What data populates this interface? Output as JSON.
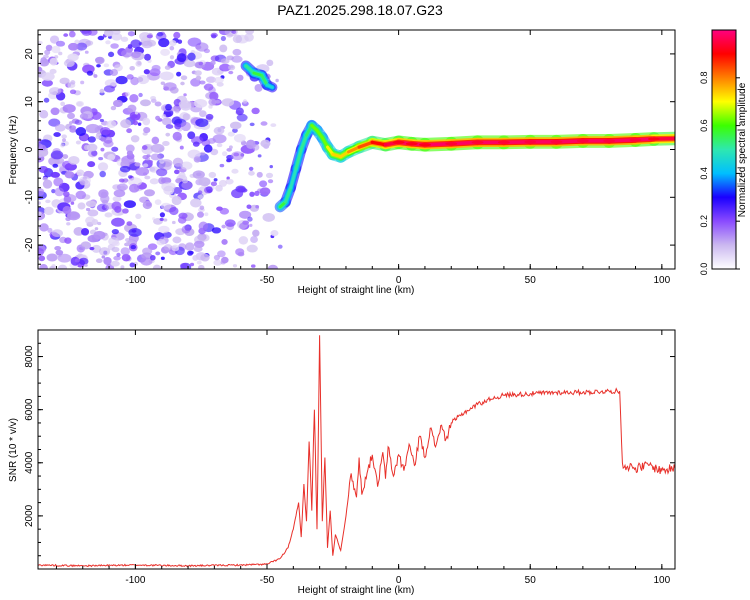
{
  "figure_title": "PAZ1.2025.298.18.07.G23",
  "chart_data": [
    {
      "type": "heatmap",
      "panel": "spectrogram",
      "xlabel": "Height of straight line (km)",
      "ylabel": "Frequency (Hz)",
      "xlim": [
        -137,
        105
      ],
      "ylim": [
        -25,
        25
      ],
      "xticks": [
        -100,
        -50,
        0,
        50,
        100
      ],
      "yticks": [
        -20,
        -10,
        0,
        10,
        20
      ],
      "colorbar": {
        "label": "Normalized spectral amplitude",
        "range": [
          0,
          1
        ],
        "ticks": [
          0.0,
          0.2,
          0.4,
          0.6,
          0.8
        ],
        "tick_labels": [
          "0.0",
          "0.2",
          "0.4",
          "0.6",
          "0.8"
        ],
        "stops": [
          "#ffffff",
          "#cbb8f0",
          "#8a4bff",
          "#1a00ff",
          "#00bfff",
          "#2ee8b0",
          "#3cff00",
          "#ffff00",
          "#ff8000",
          "#ff0000",
          "#ff0080"
        ]
      },
      "noise_region_x": [
        -137,
        -52
      ],
      "ridge": [
        {
          "x": -58,
          "f": 17.5,
          "a": 0.45
        },
        {
          "x": -55,
          "f": 16.0,
          "a": 0.5
        },
        {
          "x": -52,
          "f": 15.5,
          "a": 0.55
        },
        {
          "x": -50,
          "f": 13.5,
          "a": 0.45
        },
        {
          "x": -48,
          "f": 13.0,
          "a": 0.4
        },
        {
          "x": -45,
          "f": -12.0,
          "a": 0.55
        },
        {
          "x": -43,
          "f": -11.0,
          "a": 0.5
        },
        {
          "x": -41,
          "f": -8.0,
          "a": 0.45
        },
        {
          "x": -39,
          "f": -4.0,
          "a": 0.45
        },
        {
          "x": -37,
          "f": 0.0,
          "a": 0.5
        },
        {
          "x": -35,
          "f": 3.0,
          "a": 0.45
        },
        {
          "x": -33,
          "f": 5.0,
          "a": 0.55
        },
        {
          "x": -31,
          "f": 4.0,
          "a": 0.6
        },
        {
          "x": -29,
          "f": 2.5,
          "a": 0.55
        },
        {
          "x": -27,
          "f": 0.5,
          "a": 0.6
        },
        {
          "x": -25,
          "f": -1.0,
          "a": 0.7
        },
        {
          "x": -22,
          "f": -1.5,
          "a": 0.65
        },
        {
          "x": -19,
          "f": -0.5,
          "a": 0.7
        },
        {
          "x": -15,
          "f": 0.5,
          "a": 0.75
        },
        {
          "x": -10,
          "f": 1.5,
          "a": 0.8
        },
        {
          "x": -5,
          "f": 1.0,
          "a": 0.85
        },
        {
          "x": 0,
          "f": 1.5,
          "a": 0.9
        },
        {
          "x": 5,
          "f": 1.2,
          "a": 0.9
        },
        {
          "x": 10,
          "f": 1.0,
          "a": 0.9
        },
        {
          "x": 20,
          "f": 1.2,
          "a": 0.92
        },
        {
          "x": 30,
          "f": 1.5,
          "a": 0.92
        },
        {
          "x": 40,
          "f": 1.5,
          "a": 0.92
        },
        {
          "x": 50,
          "f": 1.6,
          "a": 0.93
        },
        {
          "x": 60,
          "f": 1.6,
          "a": 0.93
        },
        {
          "x": 70,
          "f": 1.8,
          "a": 0.93
        },
        {
          "x": 80,
          "f": 1.8,
          "a": 0.93
        },
        {
          "x": 90,
          "f": 2.0,
          "a": 0.93
        },
        {
          "x": 97,
          "f": 2.2,
          "a": 0.9
        },
        {
          "x": 105,
          "f": 2.3,
          "a": 0.85
        }
      ]
    },
    {
      "type": "line",
      "panel": "snr",
      "xlabel": "Height of straight line (km)",
      "ylabel": "SNR (10 * v/v)",
      "xlim": [
        -137,
        105
      ],
      "ylim": [
        0,
        9000
      ],
      "xticks": [
        -100,
        -50,
        0,
        50,
        100
      ],
      "yticks": [
        2000,
        4000,
        6000,
        8000
      ],
      "color": "#e8302a",
      "series": [
        {
          "name": "SNR",
          "x": [
            -137,
            -120,
            -100,
            -80,
            -60,
            -50,
            -45,
            -42,
            -40,
            -38,
            -37,
            -36,
            -35,
            -34,
            -33,
            -32,
            -31,
            -30,
            -29,
            -28,
            -27,
            -26,
            -25,
            -24,
            -22,
            -20,
            -18,
            -16,
            -15,
            -14,
            -12,
            -10,
            -8,
            -6,
            -5,
            -4,
            -2,
            0,
            2,
            4,
            6,
            8,
            10,
            12,
            14,
            16,
            18,
            20,
            25,
            30,
            35,
            40,
            50,
            60,
            70,
            80,
            84,
            85,
            86,
            90,
            95,
            100,
            105
          ],
          "values": [
            150,
            120,
            150,
            120,
            150,
            180,
            400,
            800,
            1500,
            2500,
            1200,
            3200,
            1800,
            4800,
            2200,
            6000,
            1500,
            8800,
            1800,
            4200,
            800,
            2200,
            500,
            1300,
            700,
            2000,
            3600,
            2700,
            4200,
            2800,
            3600,
            4300,
            3100,
            4400,
            3400,
            4600,
            3500,
            4300,
            3700,
            4700,
            3900,
            5000,
            4200,
            5300,
            4600,
            5400,
            4900,
            5500,
            5900,
            6200,
            6400,
            6550,
            6600,
            6650,
            6650,
            6700,
            6700,
            4000,
            3900,
            3800,
            3900,
            3700,
            3800
          ]
        }
      ]
    }
  ]
}
